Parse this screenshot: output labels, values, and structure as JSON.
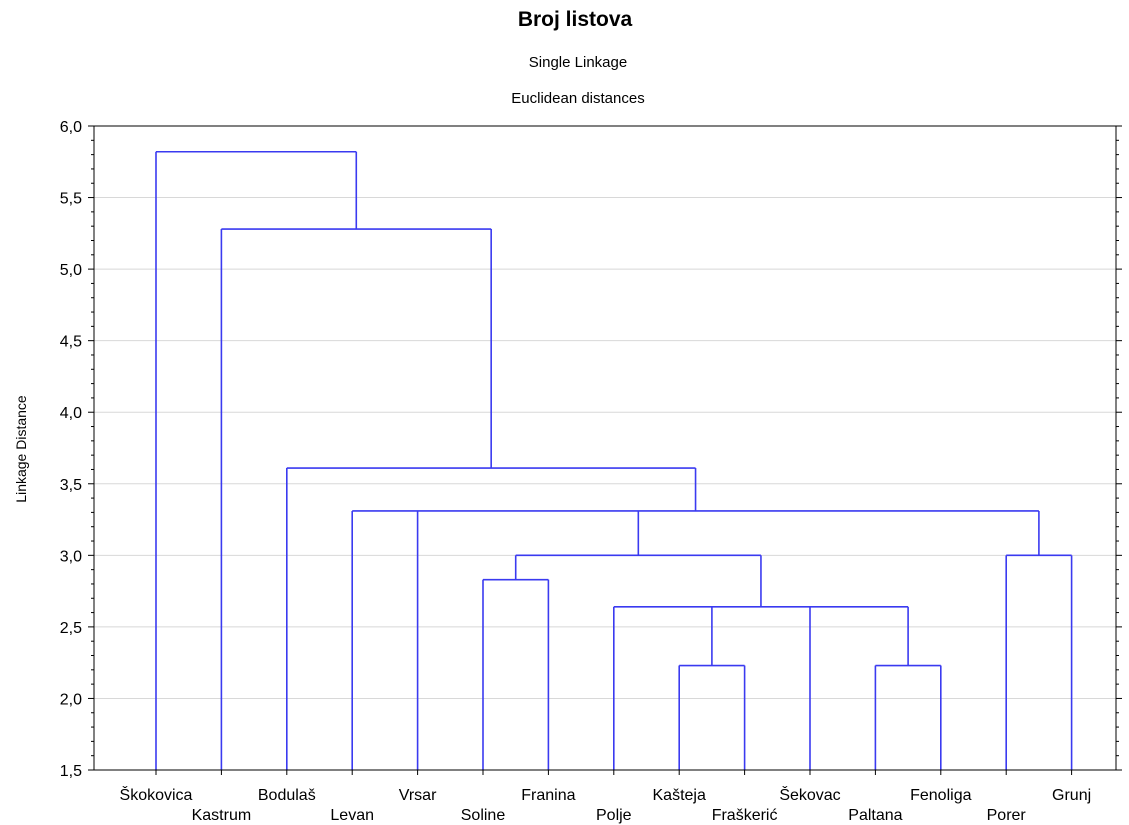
{
  "chart_data": {
    "type": "dendrogram",
    "title": "Broj listova",
    "subtitle_1": "Single Linkage",
    "subtitle_2": "Euclidean distances",
    "ylabel": "Linkage Distance",
    "xlabel": "",
    "ylim": [
      1.5,
      6.0
    ],
    "y_ticks": [
      "1,5",
      "2,0",
      "2,5",
      "3,0",
      "3,5",
      "4,0",
      "4,5",
      "5,0",
      "5,5",
      "6,0"
    ],
    "grid": true,
    "link_color": "#3a3af0",
    "leaves": [
      "Škokovica",
      "Kastrum",
      "Bodulaš",
      "Levan",
      "Vrsar",
      "Soline",
      "Franina",
      "Polje",
      "Kašteja",
      "Fraškerić",
      "Šekovac",
      "Paltana",
      "Fenoliga",
      "Porer",
      "Grunj"
    ],
    "merges": [
      {
        "members": [
          "Kašteja",
          "Fraškerić"
        ],
        "height": 2.23
      },
      {
        "members": [
          "Paltana",
          "Fenoliga"
        ],
        "height": 2.23
      },
      {
        "members": [
          "Polje",
          "Kašteja",
          "Fraškerić",
          "Šekovac",
          "Paltana",
          "Fenoliga"
        ],
        "height": 2.64
      },
      {
        "members": [
          "Soline",
          "Franina"
        ],
        "height": 2.83
      },
      {
        "members": [
          "Porer",
          "Grunj"
        ],
        "height": 3.0
      },
      {
        "members": [
          "Soline",
          "Franina",
          "Polje",
          "Kašteja",
          "Fraškerić",
          "Šekovac",
          "Paltana",
          "Fenoliga"
        ],
        "height": 3.0
      },
      {
        "members": [
          "Levan",
          "Vrsar",
          "Soline",
          "Franina",
          "Polje",
          "Kašteja",
          "Fraškerić",
          "Šekovac",
          "Paltana",
          "Fenoliga",
          "Porer",
          "Grunj"
        ],
        "height": 3.31
      },
      {
        "members": [
          "Bodulaš",
          "Levan",
          "Vrsar",
          "Soline",
          "Franina",
          "Polje",
          "Kašteja",
          "Fraškerić",
          "Šekovac",
          "Paltana",
          "Fenoliga",
          "Porer",
          "Grunj"
        ],
        "height": 3.61
      },
      {
        "members": [
          "Kastrum",
          "Bodulaš",
          "Levan",
          "Vrsar",
          "Soline",
          "Franina",
          "Polje",
          "Kašteja",
          "Fraškerić",
          "Šekovac",
          "Paltana",
          "Fenoliga",
          "Porer",
          "Grunj"
        ],
        "height": 5.28
      },
      {
        "members": [
          "Škokovica",
          "Kastrum",
          "Bodulaš",
          "Levan",
          "Vrsar",
          "Soline",
          "Franina",
          "Polje",
          "Kašteja",
          "Fraškerić",
          "Šekovac",
          "Paltana",
          "Fenoliga",
          "Porer",
          "Grunj"
        ],
        "height": 5.82
      }
    ]
  }
}
